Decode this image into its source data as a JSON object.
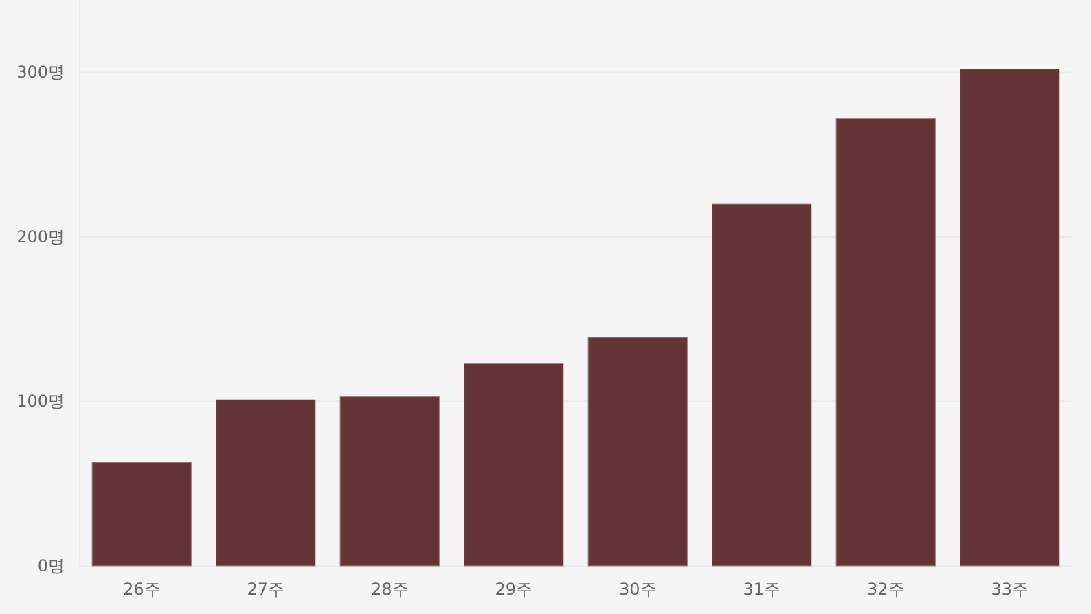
{
  "chart_data": {
    "type": "bar",
    "categories": [
      "26주",
      "27주",
      "28주",
      "29주",
      "30주",
      "31주",
      "32주",
      "33주"
    ],
    "values": [
      63,
      101,
      103,
      123,
      139,
      220,
      272,
      302
    ],
    "color": "#653436",
    "ylim": [
      0,
      344
    ],
    "yticks": [
      {
        "value": 0,
        "label": "0명"
      },
      {
        "value": 100,
        "label": "100명"
      },
      {
        "value": 200,
        "label": "200명"
      },
      {
        "value": 300,
        "label": "300명"
      }
    ],
    "grid": "y"
  }
}
